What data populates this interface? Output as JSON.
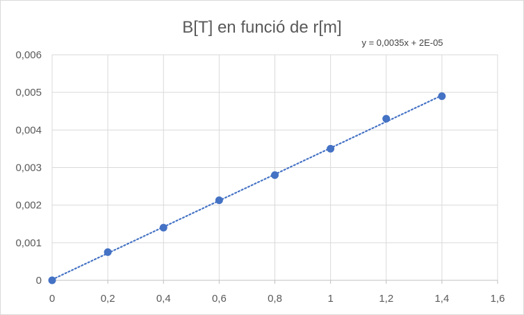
{
  "chart_data": {
    "type": "scatter",
    "title": "B[T] en funció de r[m]",
    "xlabel": "",
    "ylabel": "",
    "xlim": [
      0,
      1.6
    ],
    "ylim": [
      0,
      0.006
    ],
    "x_ticks": [
      "0",
      "0,2",
      "0,4",
      "0,6",
      "0,8",
      "1",
      "1,2",
      "1,4",
      "1,6"
    ],
    "x_tick_values": [
      0,
      0.2,
      0.4,
      0.6,
      0.8,
      1.0,
      1.2,
      1.4,
      1.6
    ],
    "y_ticks": [
      "0",
      "0,001",
      "0,002",
      "0,003",
      "0,004",
      "0,005",
      "0,006"
    ],
    "y_tick_values": [
      0,
      0.001,
      0.002,
      0.003,
      0.004,
      0.005,
      0.006
    ],
    "grid": true,
    "legend": "none",
    "series": [
      {
        "color": "#4472c4",
        "points": [
          {
            "x": 0,
            "y": 0
          },
          {
            "x": 0.2,
            "y": 0.00075
          },
          {
            "x": 0.4,
            "y": 0.0014
          },
          {
            "x": 0.6,
            "y": 0.00213
          },
          {
            "x": 0.8,
            "y": 0.0028
          },
          {
            "x": 1.0,
            "y": 0.0035
          },
          {
            "x": 1.2,
            "y": 0.0043
          },
          {
            "x": 1.4,
            "y": 0.0049
          }
        ]
      }
    ],
    "trendline": {
      "type": "linear",
      "style": "dotted",
      "color": "#4472c4",
      "slope": 0.0035,
      "intercept": 2e-05,
      "x_range": [
        0,
        1.4
      ],
      "equation": "y = 0,0035x + 2E-05"
    }
  }
}
